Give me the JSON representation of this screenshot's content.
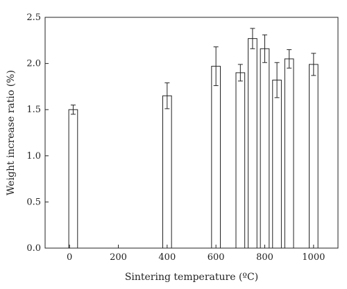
{
  "chart_data": {
    "type": "bar",
    "xlabel": "Sintering temperature (ºC)",
    "ylabel": "Weight increase ratio (%)",
    "xlim": [
      -100,
      1100
    ],
    "ylim": [
      0,
      2.5
    ],
    "xticks": [
      0,
      200,
      400,
      600,
      800,
      1000
    ],
    "yticks": [
      0.0,
      0.5,
      1.0,
      1.5,
      2.0,
      2.5
    ],
    "ytick_labels": [
      "0.0",
      "0.5",
      "1.0",
      "1.5",
      "2.0",
      "2.5"
    ],
    "grid": false,
    "bar_width": 36,
    "bars": [
      {
        "x": 15,
        "value": 1.5,
        "error": 0.05
      },
      {
        "x": 400,
        "value": 1.65,
        "error": 0.14
      },
      {
        "x": 600,
        "value": 1.97,
        "error": 0.21
      },
      {
        "x": 700,
        "value": 1.9,
        "error": 0.09
      },
      {
        "x": 750,
        "value": 2.27,
        "error": 0.11
      },
      {
        "x": 800,
        "value": 2.16,
        "error": 0.15
      },
      {
        "x": 850,
        "value": 1.82,
        "error": 0.19
      },
      {
        "x": 900,
        "value": 2.05,
        "error": 0.1
      },
      {
        "x": 1000,
        "value": 1.99,
        "error": 0.12
      }
    ]
  }
}
